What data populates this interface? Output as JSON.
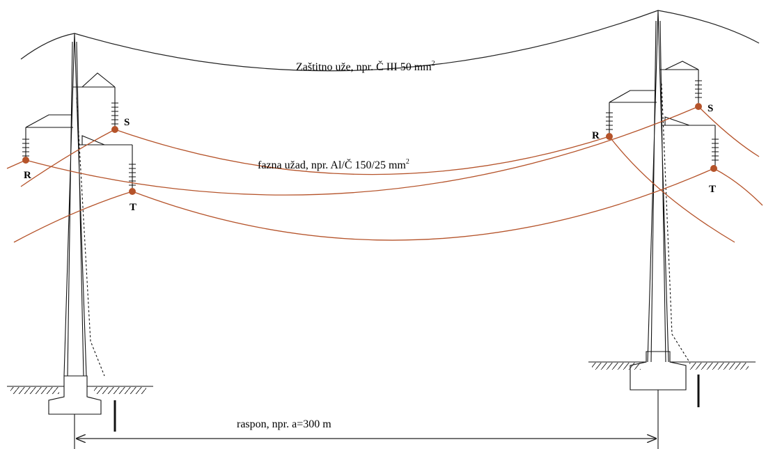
{
  "shield_wire": {
    "text": "Zaštitno uže, npr. Č III 50 mm",
    "sup": "2"
  },
  "phase_wires": {
    "text": "fazna užad, npr. Al/Č 150/25 mm",
    "sup": "2"
  },
  "span": {
    "text": "raspon, npr. a=300 m"
  },
  "towers": [
    {
      "phase_labels": [
        "S",
        "R",
        "T"
      ]
    },
    {
      "phase_labels": [
        "S",
        "R",
        "T"
      ]
    }
  ]
}
